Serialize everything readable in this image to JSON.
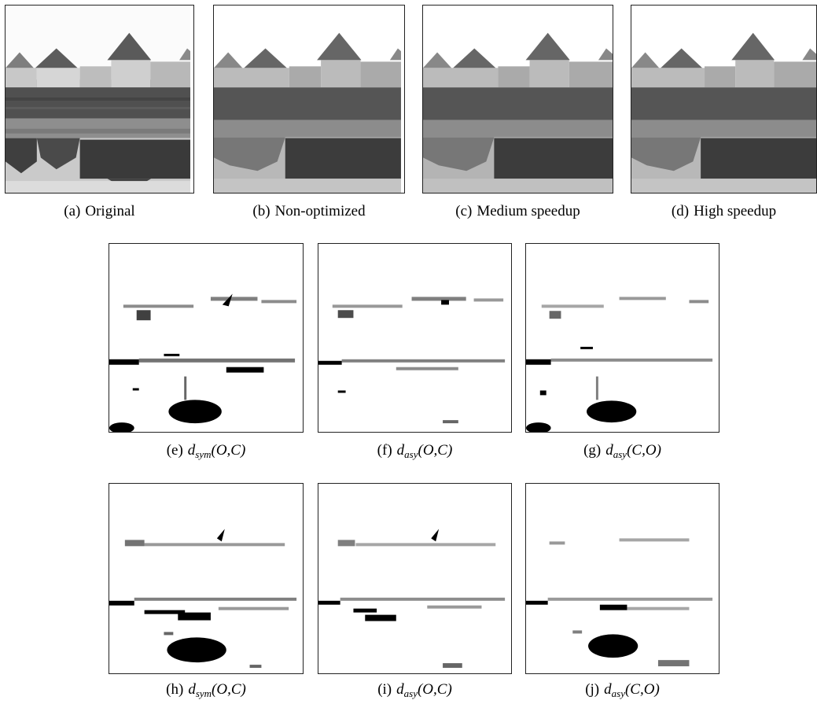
{
  "figure": {
    "top_row": [
      {
        "label": "(a)",
        "text": "Original"
      },
      {
        "label": "(b)",
        "text": "Non-optimized"
      },
      {
        "label": "(c)",
        "text": "Medium speedup"
      },
      {
        "label": "(d)",
        "text": "High speedup"
      }
    ],
    "middle_row": [
      {
        "label": "(e)",
        "d": "d",
        "sub": "sym",
        "args": "(O,C)"
      },
      {
        "label": "(f)",
        "d": "d",
        "sub": "asy",
        "args": "(O,C)"
      },
      {
        "label": "(g)",
        "d": "d",
        "sub": "asy",
        "args": "(C,O)"
      }
    ],
    "bottom_row": [
      {
        "label": "(h)",
        "d": "d",
        "sub": "sym",
        "args": "(O,C)"
      },
      {
        "label": "(i)",
        "d": "d",
        "sub": "asy",
        "args": "(O,C)"
      },
      {
        "label": "(j)",
        "d": "d",
        "sub": "asy",
        "args": "(C,O)"
      }
    ]
  }
}
